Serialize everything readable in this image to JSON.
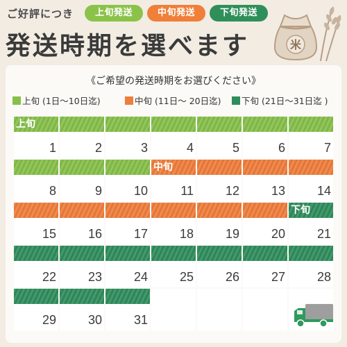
{
  "header": {
    "intro": "ご好評につき",
    "badges": {
      "early": "上旬発送",
      "mid": "中旬発送",
      "late": "下旬発送"
    },
    "title": "発送時期を選べます",
    "bag_mark": "米"
  },
  "card": {
    "subtitle": "《ご希望の発送時期をお選びください》",
    "legend": [
      {
        "label": "上旬 (1日〜10日迄)",
        "color": "#86c04a"
      },
      {
        "label": "中旬 (11日〜 20日迄)",
        "color": "#ef7d3b"
      },
      {
        "label": "下旬 (21日〜31日迄 )",
        "color": "#2f8d5c"
      }
    ]
  },
  "calendar": {
    "period_labels": {
      "early": "上旬",
      "mid": "中旬",
      "late": "下旬"
    },
    "days": [
      "1",
      "2",
      "3",
      "4",
      "5",
      "6",
      "7",
      "8",
      "9",
      "10",
      "11",
      "12",
      "13",
      "14",
      "15",
      "16",
      "17",
      "18",
      "19",
      "20",
      "21",
      "22",
      "23",
      "24",
      "25",
      "26",
      "27",
      "28",
      "29",
      "30",
      "31"
    ]
  },
  "colors": {
    "early": "#86c04a",
    "mid": "#ef7d3b",
    "late": "#2f8d5c",
    "background": "#f3ece3"
  },
  "icons": {
    "bag": "rice-bag-icon",
    "truck": "delivery-truck-icon"
  }
}
